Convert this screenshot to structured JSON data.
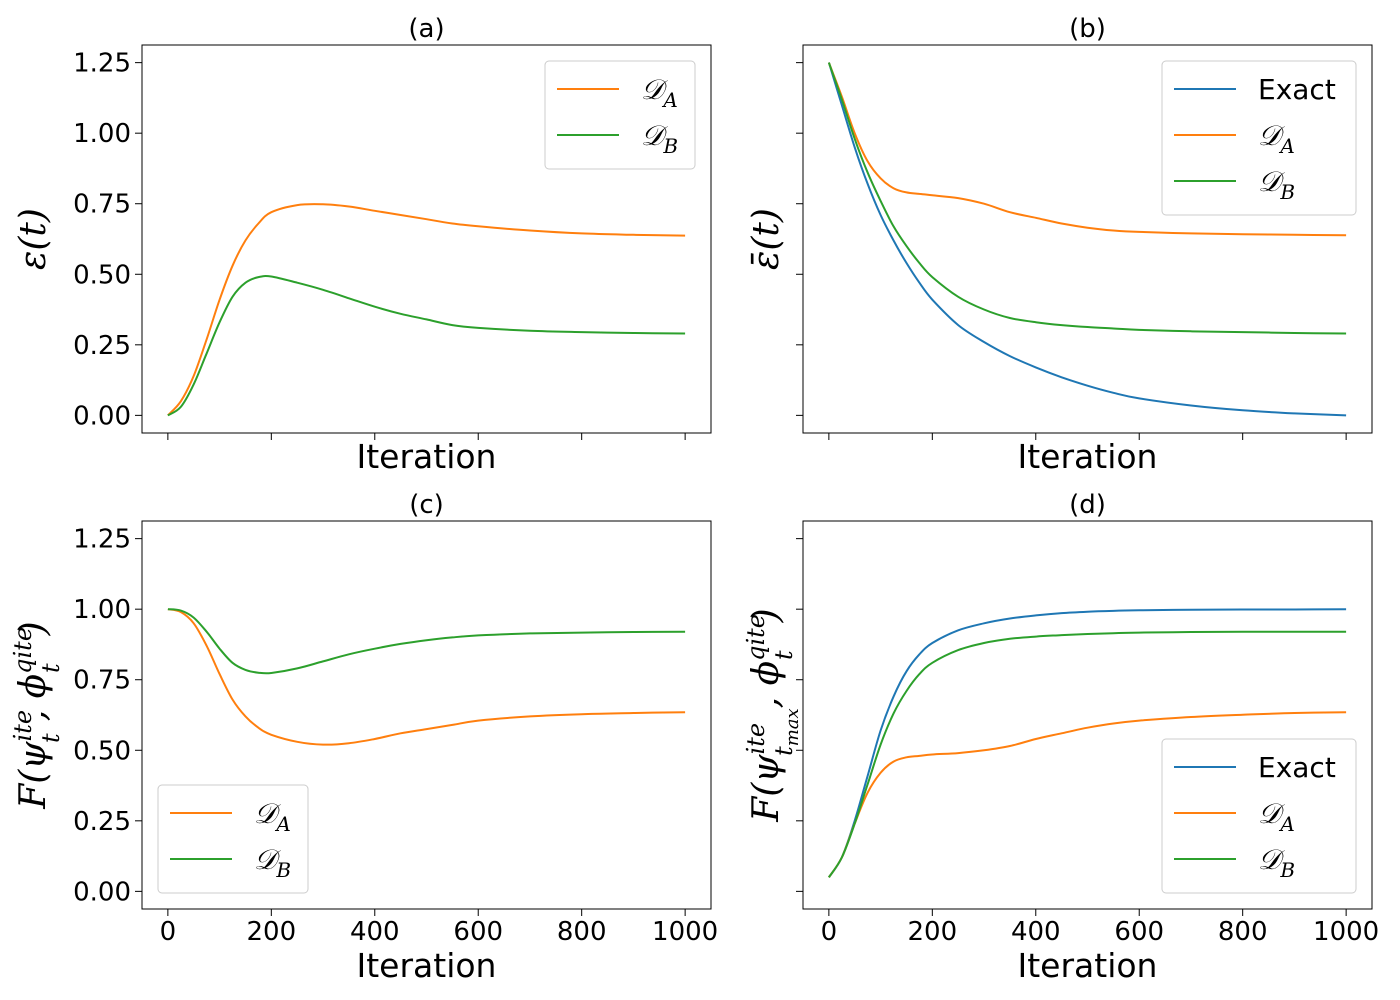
{
  "chart_data": [
    {
      "panel": "a",
      "type": "line",
      "title": "(a)",
      "xlabel": "Iteration",
      "ylabel": "ε(t)",
      "xlim": [
        -50,
        1050
      ],
      "ylim": [
        -0.0625,
        1.3125
      ],
      "xticks": [
        0,
        200,
        400,
        600,
        800,
        1000
      ],
      "yticks": [
        0.0,
        0.25,
        0.5,
        0.75,
        1.0,
        1.25
      ],
      "ytick_labels": [
        "0.00",
        "0.25",
        "0.50",
        "0.75",
        "1.00",
        "1.25"
      ],
      "show_xtick_labels": false,
      "show_ytick_labels": true,
      "legend": "top-right",
      "x": [
        0,
        25,
        50,
        75,
        100,
        125,
        150,
        175,
        200,
        250,
        300,
        350,
        400,
        450,
        500,
        550,
        600,
        700,
        800,
        900,
        1000
      ],
      "series": [
        {
          "name": "𝒟A",
          "key": "DA",
          "color": "#ff7f0e",
          "values": [
            0.0,
            0.05,
            0.14,
            0.27,
            0.41,
            0.53,
            0.62,
            0.68,
            0.72,
            0.745,
            0.748,
            0.74,
            0.725,
            0.71,
            0.695,
            0.68,
            0.67,
            0.655,
            0.645,
            0.64,
            0.637
          ]
        },
        {
          "name": "𝒟B",
          "key": "DB",
          "color": "#2ca02c",
          "values": [
            0.0,
            0.03,
            0.11,
            0.22,
            0.33,
            0.42,
            0.47,
            0.49,
            0.492,
            0.47,
            0.445,
            0.415,
            0.385,
            0.36,
            0.34,
            0.32,
            0.31,
            0.3,
            0.295,
            0.292,
            0.29
          ]
        }
      ]
    },
    {
      "panel": "b",
      "type": "line",
      "title": "(b)",
      "xlabel": "Iteration",
      "ylabel": "ε̄(t)",
      "xlim": [
        -50,
        1050
      ],
      "ylim": [
        -0.0625,
        1.3125
      ],
      "xticks": [
        0,
        200,
        400,
        600,
        800,
        1000
      ],
      "yticks": [
        0.0,
        0.25,
        0.5,
        0.75,
        1.0,
        1.25
      ],
      "ytick_labels": [
        "0.00",
        "0.25",
        "0.50",
        "0.75",
        "1.00",
        "1.25"
      ],
      "show_xtick_labels": false,
      "show_ytick_labels": false,
      "legend": "top-right",
      "x": [
        0,
        25,
        50,
        75,
        100,
        125,
        150,
        175,
        200,
        250,
        300,
        350,
        400,
        450,
        500,
        550,
        600,
        700,
        800,
        900,
        1000
      ],
      "series": [
        {
          "name": "Exact",
          "key": "Exact",
          "color": "#1f77b4",
          "values": [
            1.25,
            1.1,
            0.95,
            0.82,
            0.71,
            0.62,
            0.54,
            0.47,
            0.41,
            0.32,
            0.26,
            0.21,
            0.17,
            0.135,
            0.105,
            0.08,
            0.06,
            0.035,
            0.018,
            0.007,
            0.0
          ]
        },
        {
          "name": "𝒟A",
          "key": "DA",
          "color": "#ff7f0e",
          "values": [
            1.25,
            1.13,
            1.0,
            0.9,
            0.84,
            0.805,
            0.79,
            0.785,
            0.78,
            0.77,
            0.75,
            0.72,
            0.7,
            0.68,
            0.665,
            0.655,
            0.65,
            0.645,
            0.642,
            0.64,
            0.638
          ]
        },
        {
          "name": "𝒟B",
          "key": "DB",
          "color": "#2ca02c",
          "values": [
            1.25,
            1.12,
            0.98,
            0.86,
            0.76,
            0.67,
            0.6,
            0.54,
            0.49,
            0.42,
            0.375,
            0.345,
            0.33,
            0.32,
            0.313,
            0.308,
            0.303,
            0.298,
            0.295,
            0.292,
            0.29
          ]
        }
      ]
    },
    {
      "panel": "c",
      "type": "line",
      "title": "(c)",
      "xlabel": "Iteration",
      "ylabel": "F(ψ_t^ite, ϕ_t^qite)",
      "xlim": [
        -50,
        1050
      ],
      "ylim": [
        -0.0625,
        1.3125
      ],
      "xticks": [
        0,
        200,
        400,
        600,
        800,
        1000
      ],
      "xtick_labels": [
        "0",
        "200",
        "400",
        "600",
        "800",
        "1000"
      ],
      "yticks": [
        0.0,
        0.25,
        0.5,
        0.75,
        1.0,
        1.25
      ],
      "ytick_labels": [
        "0.00",
        "0.25",
        "0.50",
        "0.75",
        "1.00",
        "1.25"
      ],
      "show_xtick_labels": true,
      "show_ytick_labels": true,
      "legend": "bottom-left",
      "x": [
        0,
        25,
        50,
        75,
        100,
        125,
        150,
        175,
        200,
        250,
        300,
        350,
        400,
        450,
        500,
        550,
        600,
        700,
        800,
        900,
        1000
      ],
      "series": [
        {
          "name": "𝒟A",
          "key": "DA",
          "color": "#ff7f0e",
          "values": [
            1.0,
            0.99,
            0.95,
            0.87,
            0.77,
            0.68,
            0.62,
            0.58,
            0.555,
            0.53,
            0.52,
            0.525,
            0.54,
            0.56,
            0.575,
            0.59,
            0.605,
            0.62,
            0.628,
            0.632,
            0.635
          ]
        },
        {
          "name": "𝒟B",
          "key": "DB",
          "color": "#2ca02c",
          "values": [
            1.0,
            0.995,
            0.97,
            0.92,
            0.86,
            0.81,
            0.785,
            0.775,
            0.774,
            0.79,
            0.815,
            0.84,
            0.86,
            0.877,
            0.89,
            0.9,
            0.907,
            0.914,
            0.917,
            0.919,
            0.92
          ]
        }
      ]
    },
    {
      "panel": "d",
      "type": "line",
      "title": "(d)",
      "xlabel": "Iteration",
      "ylabel": "F(ψ_tmax^ite, ϕ_t^qite)",
      "xlim": [
        -50,
        1050
      ],
      "ylim": [
        -0.0625,
        1.3125
      ],
      "xticks": [
        0,
        200,
        400,
        600,
        800,
        1000
      ],
      "xtick_labels": [
        "0",
        "200",
        "400",
        "600",
        "800",
        "1000"
      ],
      "yticks": [
        0.0,
        0.25,
        0.5,
        0.75,
        1.0,
        1.25
      ],
      "ytick_labels": [
        "0.00",
        "0.25",
        "0.50",
        "0.75",
        "1.00",
        "1.25"
      ],
      "show_xtick_labels": true,
      "show_ytick_labels": false,
      "legend": "bottom-right",
      "x": [
        0,
        25,
        50,
        75,
        100,
        125,
        150,
        175,
        200,
        250,
        300,
        350,
        400,
        450,
        500,
        550,
        600,
        700,
        800,
        900,
        1000
      ],
      "series": [
        {
          "name": "Exact",
          "key": "Exact",
          "color": "#1f77b4",
          "values": [
            0.05,
            0.12,
            0.25,
            0.41,
            0.57,
            0.69,
            0.78,
            0.84,
            0.88,
            0.925,
            0.95,
            0.967,
            0.978,
            0.986,
            0.991,
            0.994,
            0.996,
            0.998,
            0.999,
            0.999,
            1.0
          ]
        },
        {
          "name": "𝒟A",
          "key": "DA",
          "color": "#ff7f0e",
          "values": [
            0.05,
            0.12,
            0.24,
            0.35,
            0.42,
            0.46,
            0.475,
            0.48,
            0.485,
            0.49,
            0.5,
            0.515,
            0.54,
            0.56,
            0.58,
            0.595,
            0.605,
            0.618,
            0.626,
            0.632,
            0.635
          ]
        },
        {
          "name": "𝒟B",
          "key": "DB",
          "color": "#2ca02c",
          "values": [
            0.05,
            0.12,
            0.24,
            0.38,
            0.52,
            0.63,
            0.71,
            0.77,
            0.81,
            0.855,
            0.88,
            0.895,
            0.903,
            0.908,
            0.912,
            0.915,
            0.917,
            0.919,
            0.92,
            0.92,
            0.92
          ]
        }
      ]
    }
  ]
}
